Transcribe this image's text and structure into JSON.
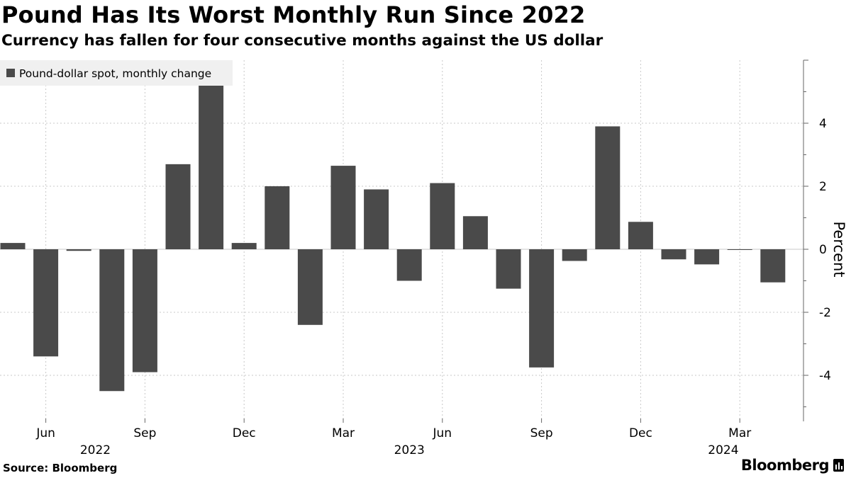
{
  "title": "Pound Has Its Worst Monthly Run Since 2022",
  "subtitle": "Currency has fallen for four consecutive months against the US dollar",
  "source": "Source: Bloomberg",
  "brand": "Bloomberg",
  "colors": {
    "bar": "#4a4a4a",
    "grid": "#c8c8c8",
    "legend_bg": "#f0f0f0",
    "axis": "#666666"
  },
  "chart_data": {
    "type": "bar",
    "legend": "Pound-dollar spot, monthly change",
    "legend_position": "top-left",
    "ylabel": "Percent",
    "ylim": [
      -5.5,
      6
    ],
    "yticks": [
      -4,
      -2,
      0,
      2,
      4
    ],
    "grid": true,
    "categories": [
      "2022-05",
      "2022-06",
      "2022-07",
      "2022-08",
      "2022-09",
      "2022-10",
      "2022-11",
      "2022-12",
      "2023-01",
      "2023-02",
      "2023-03",
      "2023-04",
      "2023-05",
      "2023-06",
      "2023-07",
      "2023-08",
      "2023-09",
      "2023-10",
      "2023-11",
      "2023-12",
      "2024-01",
      "2024-02",
      "2024-03",
      "2024-04"
    ],
    "values": [
      0.2,
      -3.4,
      -0.05,
      -4.5,
      -3.9,
      2.7,
      5.2,
      0.2,
      2.0,
      -2.4,
      2.65,
      1.9,
      -1.0,
      2.1,
      1.05,
      -1.25,
      -3.75,
      -0.37,
      3.9,
      0.87,
      -0.32,
      -0.48,
      -0.02,
      -1.05
    ],
    "xticks": [
      {
        "label": "Jun",
        "index": 1
      },
      {
        "label": "Sep",
        "index": 4
      },
      {
        "label": "Dec",
        "index": 7
      },
      {
        "label": "Mar",
        "index": 10
      },
      {
        "label": "Jun",
        "index": 13
      },
      {
        "label": "Sep",
        "index": 16
      },
      {
        "label": "Dec",
        "index": 19
      },
      {
        "label": "Mar",
        "index": 22
      }
    ],
    "year_labels": [
      {
        "label": "2022",
        "index": 2.5
      },
      {
        "label": "2023",
        "index": 12
      },
      {
        "label": "2024",
        "index": 21.5
      }
    ]
  }
}
